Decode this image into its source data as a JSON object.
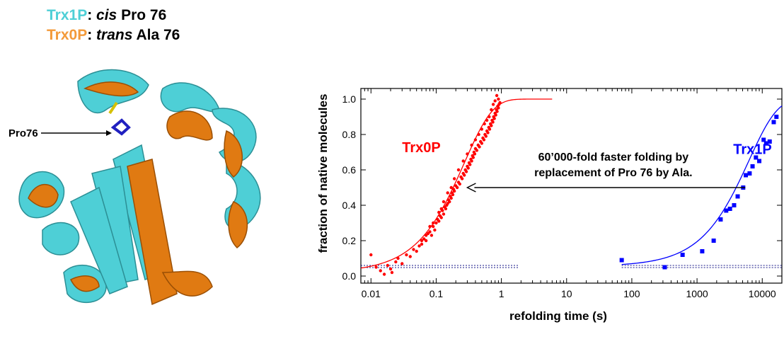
{
  "legend": {
    "row1": {
      "name": "Trx1P",
      "sep": ": ",
      "italic": "cis",
      "rest": " Pro 76",
      "color": "#4ecfd6"
    },
    "row2": {
      "name": "Trx0P",
      "sep": ": ",
      "italic": "trans",
      "rest": " Ala 76",
      "color": "#f39a3a"
    }
  },
  "structure": {
    "pointer_label": "Pro76",
    "colors": {
      "cyan": "#4ecfd6",
      "orange": "#e07a12"
    }
  },
  "chart_data": {
    "type": "scatter",
    "xscale": "log",
    "xlim": [
      0.007,
      20000
    ],
    "ylim": [
      -0.04,
      1.06
    ],
    "xlabel": "refolding time (s)",
    "ylabel": "fraction of native molecules",
    "xticks": [
      "0.01",
      "0.1",
      "1",
      "10",
      "100",
      "1000",
      "10000"
    ],
    "yticks": [
      "0.0",
      "0.2",
      "0.4",
      "0.6",
      "0.8",
      "1.0"
    ],
    "annotation": {
      "lines": [
        "60’000-fold faster folding by",
        "replacement of Pro 76 by Ala."
      ],
      "arrow_from": [
        5500,
        0.5
      ],
      "arrow_to": [
        0.3,
        0.5
      ]
    },
    "series": [
      {
        "name": "Trx0P",
        "color": "#ff0000",
        "marker": "circle",
        "label_at": [
          0.03,
          0.7
        ],
        "fit": {
          "k": 3.7,
          "y0": 0.02,
          "xmin": 0.007,
          "xmax": 6
        },
        "baseline": {
          "y": 0.06,
          "xmin": 0.007,
          "xmax": 1.8
        },
        "points": [
          [
            0.01,
            0.12
          ],
          [
            0.012,
            0.05
          ],
          [
            0.014,
            0.03
          ],
          [
            0.016,
            0.01
          ],
          [
            0.018,
            0.06
          ],
          [
            0.02,
            0.04
          ],
          [
            0.021,
            0.02
          ],
          [
            0.024,
            0.08
          ],
          [
            0.026,
            0.1
          ],
          [
            0.03,
            0.07
          ],
          [
            0.035,
            0.12
          ],
          [
            0.04,
            0.11
          ],
          [
            0.045,
            0.15
          ],
          [
            0.05,
            0.14
          ],
          [
            0.055,
            0.17
          ],
          [
            0.06,
            0.18
          ],
          [
            0.065,
            0.21
          ],
          [
            0.07,
            0.2
          ],
          [
            0.075,
            0.24
          ],
          [
            0.08,
            0.25
          ],
          [
            0.085,
            0.23
          ],
          [
            0.09,
            0.28
          ],
          [
            0.095,
            0.26
          ],
          [
            0.1,
            0.3
          ],
          [
            0.105,
            0.32
          ],
          [
            0.11,
            0.31
          ],
          [
            0.115,
            0.34
          ],
          [
            0.12,
            0.33
          ],
          [
            0.125,
            0.37
          ],
          [
            0.13,
            0.35
          ],
          [
            0.135,
            0.39
          ],
          [
            0.14,
            0.38
          ],
          [
            0.145,
            0.4
          ],
          [
            0.15,
            0.41
          ],
          [
            0.155,
            0.43
          ],
          [
            0.16,
            0.42
          ],
          [
            0.165,
            0.45
          ],
          [
            0.17,
            0.44
          ],
          [
            0.175,
            0.47
          ],
          [
            0.18,
            0.46
          ],
          [
            0.185,
            0.49
          ],
          [
            0.19,
            0.48
          ],
          [
            0.2,
            0.51
          ],
          [
            0.21,
            0.5
          ],
          [
            0.22,
            0.53
          ],
          [
            0.23,
            0.52
          ],
          [
            0.24,
            0.56
          ],
          [
            0.25,
            0.55
          ],
          [
            0.26,
            0.58
          ],
          [
            0.27,
            0.57
          ],
          [
            0.28,
            0.6
          ],
          [
            0.29,
            0.59
          ],
          [
            0.3,
            0.62
          ],
          [
            0.31,
            0.61
          ],
          [
            0.32,
            0.64
          ],
          [
            0.33,
            0.63
          ],
          [
            0.34,
            0.66
          ],
          [
            0.35,
            0.65
          ],
          [
            0.36,
            0.68
          ],
          [
            0.37,
            0.67
          ],
          [
            0.38,
            0.7
          ],
          [
            0.39,
            0.69
          ],
          [
            0.4,
            0.72
          ],
          [
            0.42,
            0.71
          ],
          [
            0.44,
            0.74
          ],
          [
            0.46,
            0.73
          ],
          [
            0.48,
            0.76
          ],
          [
            0.5,
            0.75
          ],
          [
            0.52,
            0.78
          ],
          [
            0.54,
            0.77
          ],
          [
            0.56,
            0.8
          ],
          [
            0.58,
            0.79
          ],
          [
            0.6,
            0.82
          ],
          [
            0.62,
            0.81
          ],
          [
            0.64,
            0.84
          ],
          [
            0.66,
            0.83
          ],
          [
            0.68,
            0.86
          ],
          [
            0.7,
            0.85
          ],
          [
            0.72,
            0.88
          ],
          [
            0.74,
            0.87
          ],
          [
            0.76,
            0.9
          ],
          [
            0.78,
            0.89
          ],
          [
            0.8,
            0.92
          ],
          [
            0.82,
            0.91
          ],
          [
            0.84,
            0.94
          ],
          [
            0.86,
            0.93
          ],
          [
            0.88,
            0.96
          ],
          [
            0.9,
            0.95
          ],
          [
            0.92,
            0.97
          ],
          [
            0.85,
            1.02
          ],
          [
            0.8,
            0.99
          ],
          [
            0.9,
            1.0
          ],
          [
            0.75,
            0.97
          ],
          [
            0.95,
            0.98
          ],
          [
            0.7,
            0.94
          ],
          [
            0.65,
            0.9
          ],
          [
            0.6,
            0.88
          ],
          [
            0.55,
            0.86
          ],
          [
            0.5,
            0.83
          ],
          [
            0.45,
            0.8
          ],
          [
            0.4,
            0.77
          ],
          [
            0.35,
            0.74
          ],
          [
            0.3,
            0.69
          ],
          [
            0.26,
            0.65
          ],
          [
            0.22,
            0.6
          ],
          [
            0.19,
            0.55
          ],
          [
            0.17,
            0.5
          ],
          [
            0.15,
            0.47
          ],
          [
            0.13,
            0.42
          ],
          [
            0.12,
            0.38
          ],
          [
            0.11,
            0.36
          ],
          [
            0.09,
            0.3
          ],
          [
            0.08,
            0.28
          ],
          [
            0.07,
            0.23
          ],
          [
            0.06,
            0.2
          ]
        ]
      },
      {
        "name": "Trx1P",
        "color": "#0000ff",
        "marker": "square",
        "label_at": [
          14000,
          0.69
        ],
        "fit": {
          "k": 0.00016,
          "y0": 0.055,
          "xmin": 70,
          "xmax": 20000
        },
        "baseline": {
          "y": 0.06,
          "xmin": 70,
          "xmax": 20000
        },
        "points": [
          [
            70,
            0.09
          ],
          [
            320,
            0.05
          ],
          [
            600,
            0.12
          ],
          [
            1200,
            0.14
          ],
          [
            1800,
            0.2
          ],
          [
            2300,
            0.32
          ],
          [
            2800,
            0.37
          ],
          [
            3200,
            0.38
          ],
          [
            3700,
            0.4
          ],
          [
            4200,
            0.45
          ],
          [
            5100,
            0.5
          ],
          [
            5600,
            0.57
          ],
          [
            6400,
            0.58
          ],
          [
            7100,
            0.62
          ],
          [
            8000,
            0.67
          ],
          [
            9000,
            0.65
          ],
          [
            10500,
            0.77
          ],
          [
            11500,
            0.75
          ],
          [
            13000,
            0.76
          ],
          [
            15000,
            0.87
          ],
          [
            16500,
            0.9
          ]
        ]
      }
    ]
  }
}
